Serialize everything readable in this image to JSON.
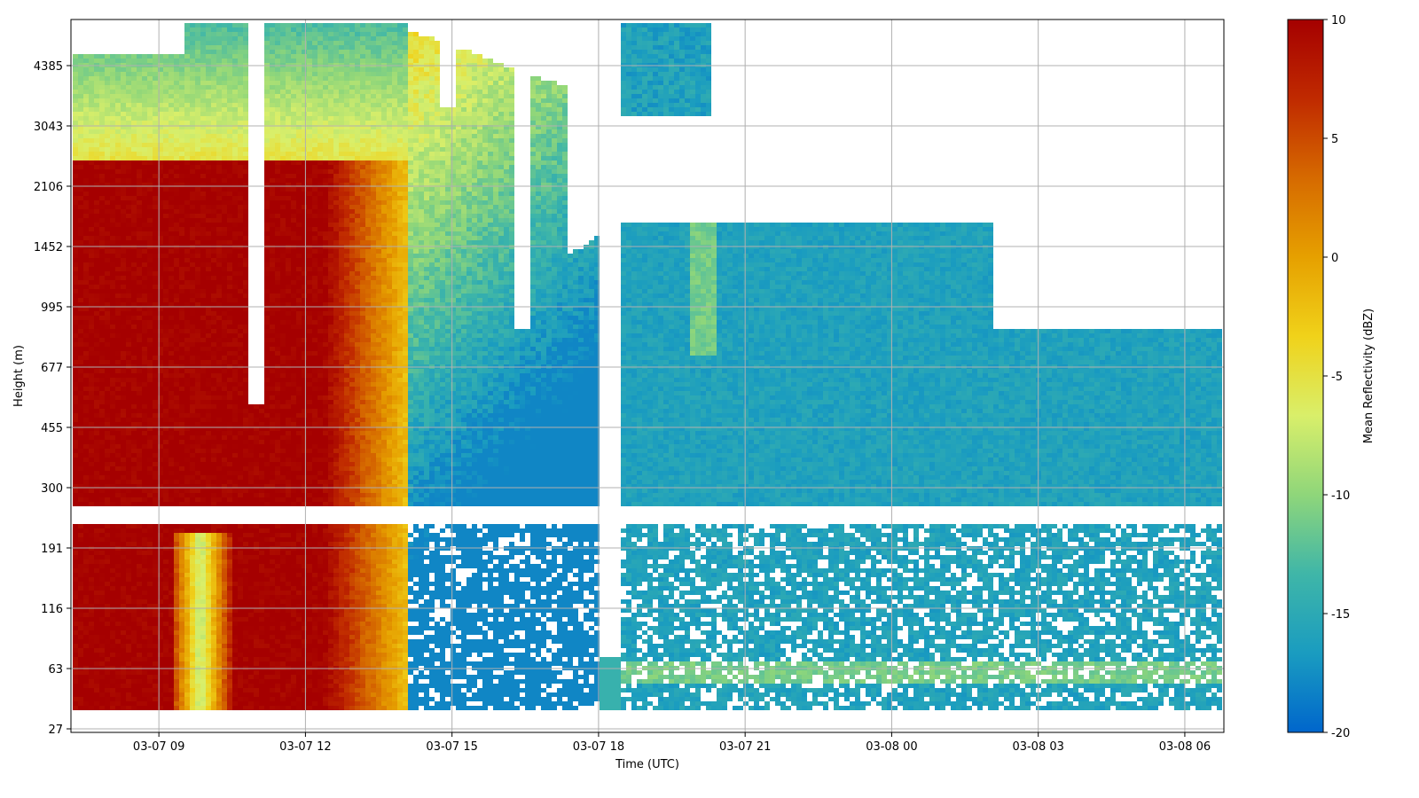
{
  "chart_data": {
    "type": "heatmap",
    "title": "",
    "xlabel": "Time (UTC)",
    "ylabel": "Height (m)",
    "colorbar_label": "Mean Reflectivity (dBZ)",
    "colormap": [
      "#0066cc",
      "#1a9cc0",
      "#3fb6a8",
      "#8fd67a",
      "#d9ef6a",
      "#f0d21a",
      "#e6a000",
      "#d66a00",
      "#c02a00",
      "#a50000"
    ],
    "clim": [
      -20,
      10
    ],
    "xlim_hours": [
      7.2,
      30.8
    ],
    "x_start_label": "03-07 07:12",
    "x_end_label": "03-08 07:48",
    "x_ticks": [
      "03-07 09",
      "03-07 12",
      "03-07 15",
      "03-07 18",
      "03-07 21",
      "03-08 00",
      "03-08 03",
      "03-08 06"
    ],
    "y_ticks": [
      "27",
      "63",
      "116",
      "191",
      "300",
      "455",
      "677",
      "995",
      "1452",
      "2106",
      "3043",
      "4385"
    ],
    "y_scale": "log-like",
    "colorbar_ticks": [
      "10",
      "5",
      "0",
      "-5",
      "-10",
      "-15",
      "-20"
    ],
    "grid": true,
    "description_regions": [
      {
        "hours": [
          7.2,
          14.0
        ],
        "heights_m": [
          40,
          5500
        ],
        "dbz": 10
      },
      {
        "hours": [
          14.0,
          18.0
        ],
        "heights_m": [
          200,
          3500
        ],
        "dbz": -8
      },
      {
        "hours": [
          18.0,
          30.7
        ],
        "heights_m": [
          40,
          1500
        ],
        "dbz": -16
      }
    ]
  }
}
